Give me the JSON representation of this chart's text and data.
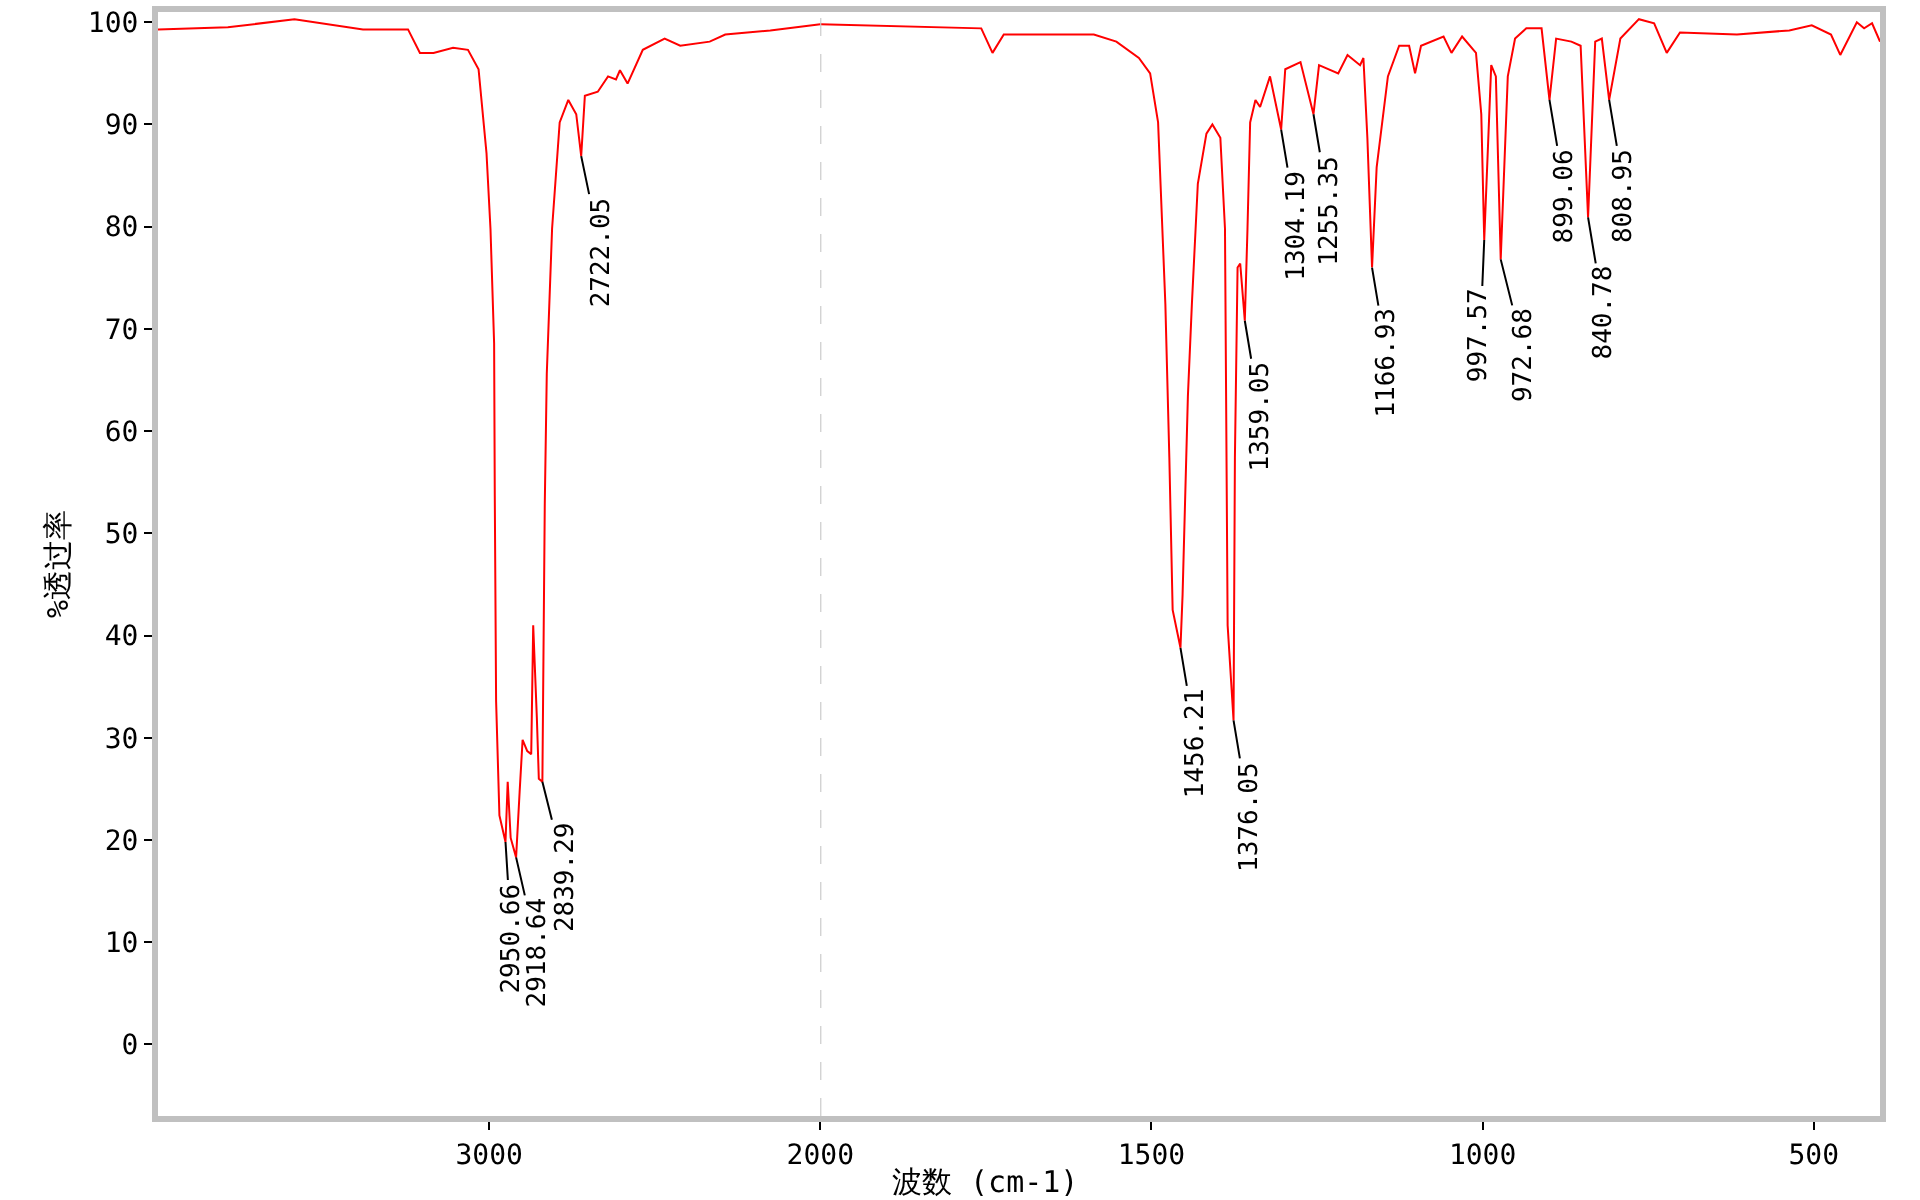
{
  "chart_data": [
    {
      "type": "line",
      "ylabel": "%透过率",
      "xlim": [
        4000,
        2000
      ],
      "ylim": [
        -7,
        101
      ],
      "xticks": [
        3000,
        2000
      ],
      "yticks": [
        0,
        10,
        20,
        30,
        40,
        50,
        60,
        70,
        80,
        90,
        100
      ],
      "marker": "none",
      "line_style": "solid",
      "series": [
        {
          "color": "#ff0000",
          "x": [
            4000,
            3789,
            3588,
            3381,
            3245,
            3209,
            3168,
            3109,
            3064,
            3032,
            3008,
            2996,
            2985,
            2983,
            2979,
            2969,
            2950.66,
            2944,
            2935,
            2918.64,
            2908,
            2899,
            2885,
            2873,
            2867,
            2856,
            2850,
            2839.29,
            2832,
            2826,
            2810,
            2787,
            2761,
            2737,
            2722.05,
            2711,
            2672,
            2641,
            2617,
            2605,
            2582,
            2536,
            2470,
            2423,
            2334,
            2287,
            2151,
            2000
          ],
          "values": [
            99.3,
            99.5,
            100.3,
            99.3,
            99.3,
            97,
            97,
            97.5,
            97.3,
            95.4,
            87.2,
            79.8,
            68.6,
            53.7,
            33.6,
            22.4,
            19.8,
            25.7,
            20.2,
            18.3,
            24.7,
            29.8,
            28.7,
            28.4,
            41,
            32,
            26,
            25.7,
            52.9,
            65.6,
            79.8,
            90.2,
            92.4,
            91,
            86.9,
            92.8,
            93.2,
            94.7,
            94.4,
            95.3,
            94,
            97.3,
            98.4,
            97.7,
            98.1,
            98.8,
            99.2,
            99.8
          ]
        }
      ],
      "annotations": [
        {
          "text": "2950.66",
          "x": 2950.66,
          "y": 19.8
        },
        {
          "text": "2918.64",
          "x": 2918.64,
          "y": 18.3
        },
        {
          "text": "2839.29",
          "x": 2839.29,
          "y": 25.7
        },
        {
          "text": "2722.05",
          "x": 2722.05,
          "y": 86.9
        }
      ]
    },
    {
      "type": "line",
      "xlabel": "波数 (cm-1)",
      "xlim": [
        2000,
        400
      ],
      "ylim": [
        -7,
        101
      ],
      "xticks": [
        1500,
        1000,
        500
      ],
      "yticks": [
        0,
        10,
        20,
        30,
        40,
        50,
        60,
        70,
        80,
        90,
        100
      ],
      "tick_labels": "x",
      "marker": "none",
      "line_style": "solid",
      "ref_lines": [
        {
          "axis": "x",
          "value": 2000,
          "color": "#c0c0c0",
          "line_style": "dashed"
        }
      ],
      "series": [
        {
          "color": "#ff0000",
          "x": [
            2000,
            1757,
            1740,
            1723,
            1587,
            1553,
            1519,
            1502,
            1490,
            1479,
            1473,
            1468,
            1456.21,
            1453,
            1445,
            1439,
            1430,
            1417,
            1408,
            1396,
            1389,
            1385,
            1376.05,
            1374,
            1370,
            1366,
            1359.05,
            1355,
            1351,
            1343,
            1336,
            1321,
            1304.19,
            1298,
            1275,
            1255.35,
            1247,
            1218,
            1204,
            1185,
            1180,
            1174,
            1166.93,
            1160,
            1143,
            1126,
            1111,
            1102,
            1093,
            1059,
            1047,
            1031,
            1010,
            1002,
            997.57,
            987,
            980,
            972.68,
            962,
            951,
            934,
            911,
            899.06,
            889,
            866,
            852,
            840.78,
            830,
            820,
            808.95,
            792,
            764,
            741,
            722,
            702,
            616,
            537,
            503,
            474,
            460,
            435,
            424,
            412,
            400
          ],
          "values": [
            99.8,
            99.4,
            97,
            98.8,
            98.8,
            98.1,
            96.5,
            95,
            90.2,
            72.4,
            57.4,
            42.5,
            38.8,
            44,
            63.4,
            72.4,
            84.2,
            89.1,
            90,
            88.7,
            79.8,
            41,
            31.7,
            57.4,
            76,
            76.4,
            70.8,
            79.8,
            90.2,
            92.4,
            91.7,
            94.7,
            89.5,
            95.4,
            96.1,
            91,
            95.8,
            95,
            96.8,
            95.8,
            96.5,
            88.7,
            76,
            85.8,
            94.7,
            97.7,
            97.7,
            95,
            97.7,
            98.6,
            97,
            98.6,
            97,
            91,
            78.7,
            95.8,
            94.7,
            76.8,
            94.7,
            98.4,
            99.4,
            99.4,
            92.4,
            98.4,
            98.1,
            97.7,
            80.9,
            98.1,
            98.4,
            92.4,
            98.4,
            100.3,
            99.9,
            97,
            99,
            98.8,
            99.2,
            99.7,
            98.8,
            96.8,
            100,
            99.4,
            99.9,
            98.1
          ]
        }
      ],
      "annotations": [
        {
          "text": "1456.21",
          "x": 1456.21,
          "y": 38.8
        },
        {
          "text": "1376.05",
          "x": 1376.05,
          "y": 31.7
        },
        {
          "text": "1359.05",
          "x": 1359.05,
          "y": 70.8
        },
        {
          "text": "1304.19",
          "x": 1304.19,
          "y": 89.5
        },
        {
          "text": "1255.35",
          "x": 1255.35,
          "y": 91
        },
        {
          "text": "1166.93",
          "x": 1166.93,
          "y": 76
        },
        {
          "text": "997.57",
          "x": 997.57,
          "y": 78.7
        },
        {
          "text": "972.68",
          "x": 972.68,
          "y": 76.8
        },
        {
          "text": "899.06",
          "x": 899.06,
          "y": 92.4
        },
        {
          "text": "840.78",
          "x": 840.78,
          "y": 80.9
        },
        {
          "text": "808.95",
          "x": 808.95,
          "y": 92.4
        }
      ]
    }
  ]
}
